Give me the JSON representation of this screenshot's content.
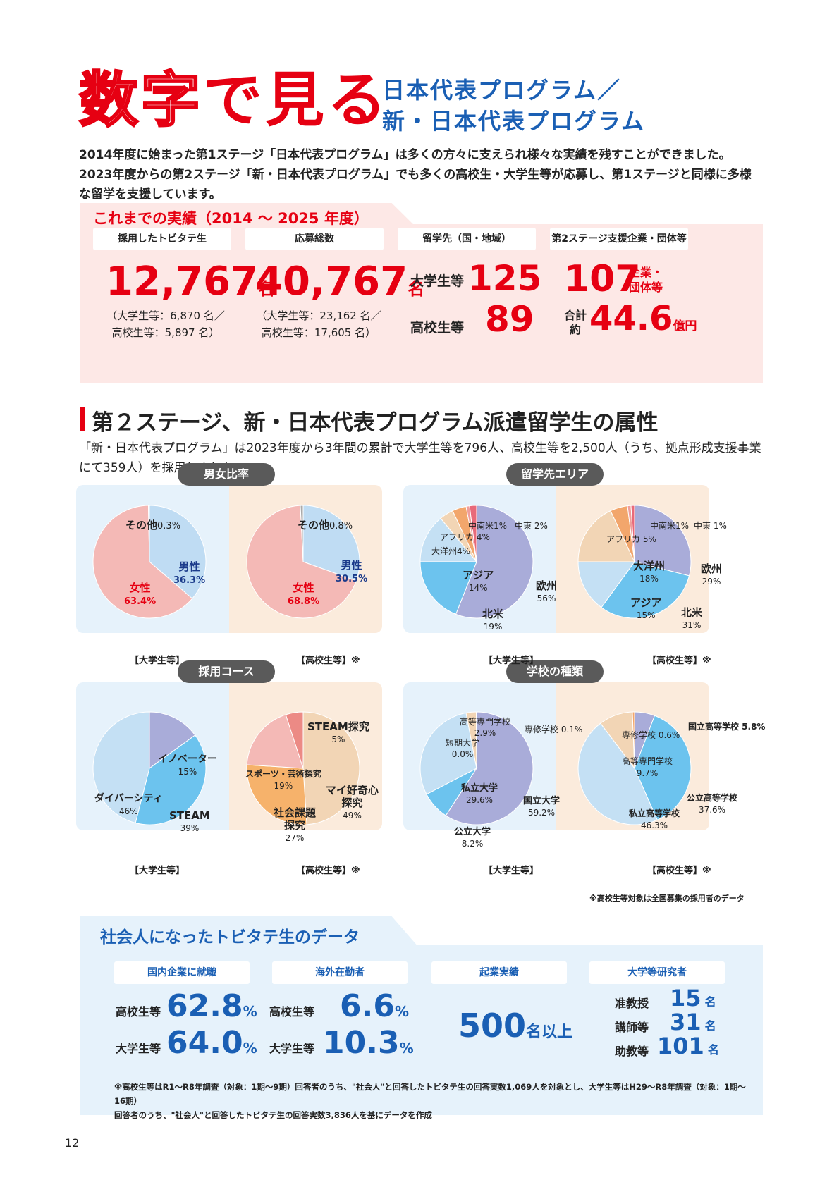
{
  "title": {
    "main_part1": "数字",
    "main_part2": "で見る",
    "sub_line1": "日本代表プログラム／",
    "sub_line2": "新・日本代表プログラム"
  },
  "intro": "2014年度に始まった第1ステージ「日本代表プログラム」は多くの方々に支えられ様々な実績を残すことができました。2023年度からの第2ステージ「新・日本代表プログラム」でも多くの高校生・大学生等が応募し、第1ステージと同様に多様な留学を支援しています。",
  "achievements": {
    "heading": "これまでの実績（2014 ～ 2025 年度）",
    "adopted": {
      "label": "採用したトビタテ生",
      "value": "12,767",
      "unit": "名",
      "detail1": "（大学生等：6,870 名／",
      "detail2": "高校生等：5,897 名）"
    },
    "applicants": {
      "label": "応募総数",
      "value": "40,767",
      "unit": "名",
      "detail1": "（大学生等：23,162 名／",
      "detail2": "高校生等：17,605 名）"
    },
    "destinations": {
      "label": "留学先（国・地域）",
      "univ_label": "大学生等",
      "univ_value": "125",
      "hs_label": "高校生等",
      "hs_value": "89"
    },
    "supporters": {
      "label": "第2ステージ支援企業・団体等",
      "count": "107",
      "count_unit1": "企業・",
      "count_unit2": "団体等",
      "total_label1": "合計",
      "total_label2": "約",
      "total_value": "44.6",
      "total_unit": "億円"
    }
  },
  "attributes": {
    "heading": "第２ステージ、新・日本代表プログラム派遣留学生の属性",
    "description": "「新・日本代表プログラム」は2023年度から3年間の累計で大学生等を796人、高校生等を2,500人（うち、拠点形成支援事業にて359人）を採用しました。",
    "note": "※高校生等対象は全国募集の採用者のデータ"
  },
  "chart_data": [
    {
      "type": "pie",
      "title": "男女比率",
      "caption": "【大学生等】",
      "slices": [
        {
          "label": "男性",
          "value": 36.3,
          "color": "#bfdcf3"
        },
        {
          "label": "女性",
          "value": 63.4,
          "color": "#f4b9b6"
        },
        {
          "label": "その他",
          "value": 0.3,
          "color": "#aaaaaa"
        }
      ]
    },
    {
      "type": "pie",
      "title": "男女比率",
      "caption": "【高校生等】※",
      "slices": [
        {
          "label": "男性",
          "value": 30.5,
          "color": "#bfdcf3"
        },
        {
          "label": "女性",
          "value": 68.8,
          "color": "#f4b9b6"
        },
        {
          "label": "その他",
          "value": 0.8,
          "color": "#aaaaaa"
        }
      ]
    },
    {
      "type": "pie",
      "title": "留学先エリア",
      "caption": "【大学生等】",
      "slices": [
        {
          "label": "欧州",
          "value": 56,
          "color": "#a9acd9"
        },
        {
          "label": "北米",
          "value": 19,
          "color": "#6cc3ee"
        },
        {
          "label": "アジア",
          "value": 14,
          "color": "#c4e0f4"
        },
        {
          "label": "大洋州",
          "value": 4,
          "color": "#f2d5b5"
        },
        {
          "label": "アフリカ",
          "value": 4,
          "color": "#f2a66c"
        },
        {
          "label": "中南米",
          "value": 1,
          "color": "#f09e9b"
        },
        {
          "label": "中東",
          "value": 2,
          "color": "#e86a7a"
        }
      ]
    },
    {
      "type": "pie",
      "title": "留学先エリア",
      "caption": "【高校生等】※",
      "slices": [
        {
          "label": "欧州",
          "value": 29,
          "color": "#a9acd9"
        },
        {
          "label": "北米",
          "value": 31,
          "color": "#6cc3ee"
        },
        {
          "label": "アジア",
          "value": 15,
          "color": "#c4e0f4"
        },
        {
          "label": "大洋州",
          "value": 18,
          "color": "#f2d5b5"
        },
        {
          "label": "アフリカ",
          "value": 5,
          "color": "#f2a66c"
        },
        {
          "label": "中南米",
          "value": 1,
          "color": "#f09e9b"
        },
        {
          "label": "中東",
          "value": 1,
          "color": "#e86a7a"
        }
      ]
    },
    {
      "type": "pie",
      "title": "採用コース",
      "caption": "【大学生等】",
      "slices": [
        {
          "label": "イノベーター",
          "value": 15,
          "color": "#a9acd9"
        },
        {
          "label": "STEAM",
          "value": 39,
          "color": "#6cc3ee"
        },
        {
          "label": "ダイバーシティ",
          "value": 46,
          "color": "#c4e0f4"
        }
      ]
    },
    {
      "type": "pie",
      "title": "採用コース",
      "caption": "【高校生等】※",
      "slices": [
        {
          "label": "マイ好奇心探究",
          "value": 49,
          "color": "#f2d5b5"
        },
        {
          "label": "社会課題探究",
          "value": 27,
          "color": "#f6b26b"
        },
        {
          "label": "スポーツ・芸術探究",
          "value": 19,
          "color": "#f4b9b6"
        },
        {
          "label": "STEAM探究",
          "value": 5,
          "color": "#ec8a85"
        }
      ]
    },
    {
      "type": "pie",
      "title": "学校の種類",
      "caption": "【大学生等】",
      "slices": [
        {
          "label": "国立大学",
          "value": 59.2,
          "color": "#a9acd9"
        },
        {
          "label": "公立大学",
          "value": 8.2,
          "color": "#6cc3ee"
        },
        {
          "label": "私立大学",
          "value": 29.6,
          "color": "#c4e0f4"
        },
        {
          "label": "短期大学",
          "value": 0.0,
          "color": "#eeeeee"
        },
        {
          "label": "高等専門学校",
          "value": 2.9,
          "color": "#f2d5b5"
        },
        {
          "label": "専修学校",
          "value": 0.1,
          "color": "#f2a66c"
        }
      ]
    },
    {
      "type": "pie",
      "title": "学校の種類",
      "caption": "【高校生等】※",
      "slices": [
        {
          "label": "国立高等学校",
          "value": 5.8,
          "color": "#a9acd9"
        },
        {
          "label": "公立高等学校",
          "value": 37.6,
          "color": "#6cc3ee"
        },
        {
          "label": "私立高等学校",
          "value": 46.3,
          "color": "#c4e0f4"
        },
        {
          "label": "高等専門学校",
          "value": 9.7,
          "color": "#f2d5b5"
        },
        {
          "label": "専修学校",
          "value": 0.6,
          "color": "#f2a66c"
        }
      ]
    }
  ],
  "labels": {
    "gender_univ": {
      "other": "その他",
      "other_v": "0.3%",
      "male": "男性",
      "male_v": "36.3%",
      "female": "女性",
      "female_v": "63.4%"
    },
    "gender_hs": {
      "other": "その他",
      "other_v": "0.8%",
      "male": "男性",
      "male_v": "30.5%",
      "female": "女性",
      "female_v": "68.8%"
    },
    "area_univ": {
      "cs": "中南米1%",
      "me": "中東 2%",
      "af1": "アフリカ",
      "af2": "4%",
      "oc": "大洋州4%",
      "as": "アジア",
      "as_v": "14%",
      "eu": "欧州",
      "eu_v": "56%",
      "na": "北米",
      "na_v": "19%"
    },
    "area_hs": {
      "cs": "中南米1%",
      "me": "中東 1%",
      "af": "アフリカ 5%",
      "oc": "大洋州",
      "oc_v": "18%",
      "eu": "欧州",
      "eu_v": "29%",
      "as": "アジア",
      "as_v": "15%",
      "na": "北米",
      "na_v": "31%"
    },
    "course_univ": {
      "inn": "イノベーター",
      "inn_v": "15%",
      "div": "ダイバーシティ",
      "div_v": "46%",
      "st": "STEAM",
      "st_v": "39%"
    },
    "course_hs": {
      "st": "STEAM探究",
      "st_v": "5%",
      "sp": "スポーツ・芸術探究",
      "sp_v": "19%",
      "my1": "マイ好奇心",
      "my2": "探究",
      "my_v": "49%",
      "so1": "社会課題",
      "so2": "探究",
      "so_v": "27%"
    },
    "school_univ": {
      "tech1": "高等専門学校",
      "tech_v": "2.9%",
      "jr1": "短期大学",
      "jr_v": "0.0%",
      "voc": "専修学校 0.1%",
      "priv": "私立大学",
      "priv_v": "29.6%",
      "nat": "国立大学",
      "nat_v": "59.2%",
      "pub": "公立大学",
      "pub_v": "8.2%"
    },
    "school_hs": {
      "voc": "専修学校 0.6%",
      "nat": "国立高等学校 5.8%",
      "tech": "高等専門学校",
      "tech_v": "9.7%",
      "pub": "公立高等学校",
      "pub_v": "37.6%",
      "priv": "私立高等学校",
      "priv_v": "46.3%"
    }
  },
  "career": {
    "heading": "社会人になったトビタテ生のデータ",
    "domestic": {
      "label": "国内企業に就職",
      "hs_label": "高校生等",
      "hs_value": "62.8",
      "univ_label": "大学生等",
      "univ_value": "64.0",
      "unit": "%"
    },
    "overseas": {
      "label": "海外在勤者",
      "hs_label": "高校生等",
      "hs_value": "6.6",
      "univ_label": "大学生等",
      "univ_value": "10.3",
      "unit": "%"
    },
    "startup": {
      "label": "起業実績",
      "value": "500",
      "unit": "名以上"
    },
    "research": {
      "label": "大学等研究者",
      "r1_label": "准教授",
      "r1_value": "15",
      "r2_label": "講師等",
      "r2_value": "31",
      "r3_label": "助教等",
      "r3_value": "101",
      "unit": "名"
    },
    "footnote1": "※高校生等はR1～R8年調査（対象：1期～9期）回答者のうち、\"社会人\"と回答したトビタテ生の回答実数1,069人を対象とし、大学生等はH29～R8年調査（対象：1期～16期）",
    "footnote2": "回答者のうち、\"社会人\"と回答したトビタテ生の回答実数3,836人を基にデータを作成"
  },
  "page_number": "12"
}
